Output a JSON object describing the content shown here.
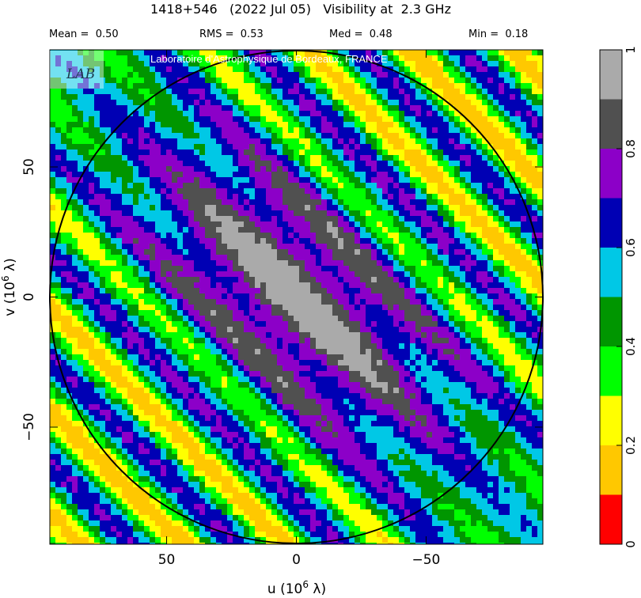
{
  "header": {
    "title": "1418+546   (2022 Jul 05)   Visibility at  2.3 GHz",
    "stats": {
      "mean": "Mean =  0.50",
      "rms": "RMS =  0.53",
      "med": "Med =  0.48",
      "min": "Min =  0.18"
    }
  },
  "watermark": "Laboratoire d'Astrophysique de Bordeaux, FRANCE",
  "logo_text": "LAB",
  "chart_data": {
    "type": "heatmap",
    "title": "1418+546   (2022 Jul 05)   Visibility at  2.3 GHz",
    "xlabel": "u  (10",
    "xlabel_sup": "6",
    "xlabel_unit": " λ)",
    "ylabel": "v  (10",
    "ylabel_sup": "6",
    "ylabel_unit": " λ)",
    "xlim": [
      95,
      -95
    ],
    "ylim": [
      -95,
      95
    ],
    "x_ticks": [
      50,
      0,
      -50
    ],
    "x_tick_labels": [
      "50",
      "0",
      "−50"
    ],
    "y_ticks": [
      50,
      0,
      -50
    ],
    "y_tick_labels": [
      "50",
      "0",
      "−50"
    ],
    "coverage_circle_radius": 95,
    "pattern": {
      "description_free": true,
      "stripe_direction": "diagonal",
      "central_peak_value": 0.95,
      "fringe_period": 28,
      "stats": {
        "mean": 0.5,
        "rms": 0.53,
        "median": 0.48,
        "min": 0.18
      }
    },
    "colorbar": {
      "range": [
        0,
        1
      ],
      "tick_values": [
        0,
        0.2,
        0.4,
        0.6,
        0.8,
        1
      ],
      "tick_labels": [
        "0",
        "0.2",
        "0.4",
        "0.6",
        "0.8",
        "1"
      ],
      "levels": [
        {
          "from": 0.0,
          "to": 0.1,
          "color": "#ff0000"
        },
        {
          "from": 0.1,
          "to": 0.2,
          "color": "#ffc800"
        },
        {
          "from": 0.2,
          "to": 0.3,
          "color": "#ffff00"
        },
        {
          "from": 0.3,
          "to": 0.4,
          "color": "#00ff00"
        },
        {
          "from": 0.4,
          "to": 0.5,
          "color": "#009600"
        },
        {
          "from": 0.5,
          "to": 0.6,
          "color": "#00c8e6"
        },
        {
          "from": 0.6,
          "to": 0.7,
          "color": "#0000b4"
        },
        {
          "from": 0.7,
          "to": 0.8,
          "color": "#8c00c8"
        },
        {
          "from": 0.8,
          "to": 0.9,
          "color": "#505050"
        },
        {
          "from": 0.9,
          "to": 1.0,
          "color": "#aaaaaa"
        }
      ]
    }
  }
}
